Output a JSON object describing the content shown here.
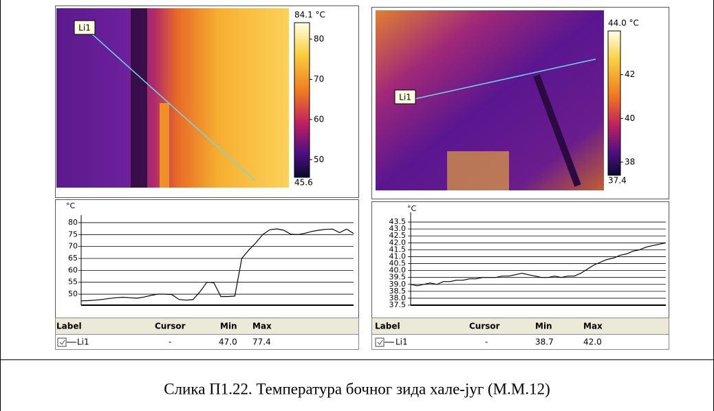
{
  "panels": [
    {
      "image": {
        "line_label": "Li1",
        "colorbar": {
          "ticks": [
            {
              "value": 84.1,
              "label": "84.1 °C"
            },
            80,
            70,
            60,
            50,
            45.6
          ]
        }
      },
      "profile": {
        "unit": "°C",
        "ylim": [
          45.4,
          82
        ],
        "yticks": [
          50,
          55,
          60,
          65,
          70,
          75,
          80
        ],
        "values": [
          47.2,
          47.3,
          47.5,
          47.8,
          48.2,
          48.5,
          48.7,
          48.5,
          48.3,
          48.8,
          49.5,
          50.0,
          50.0,
          49.8,
          47.8,
          47.5,
          47.7,
          51.0,
          55.0,
          54.8,
          49.0,
          49.0,
          49.2,
          65.0,
          68.5,
          71.5,
          75.0,
          77.0,
          77.4,
          76.8,
          75.2,
          75.0,
          75.5,
          76.3,
          76.8,
          77.2,
          77.3,
          75.8,
          77.3,
          75.5
        ]
      },
      "table": {
        "header": [
          "Label",
          "Cursor",
          "Min",
          "Max"
        ],
        "rows": [
          [
            "Li1",
            "-",
            "47.0",
            "77.4"
          ]
        ]
      }
    },
    {
      "image": {
        "line_label": "Li1",
        "colorbar": {
          "ticks": [
            {
              "value": 44,
              "label": "44.0 °C"
            },
            42,
            40,
            38,
            37.4
          ]
        }
      },
      "profile": {
        "unit": "°C",
        "ylim": [
          37.5,
          44
        ],
        "yticks": [
          {
            "value": 37.5,
            "label": "37.5"
          },
          {
            "value": 38,
            "label": "38.0"
          },
          38.5,
          {
            "value": 39,
            "label": "39.0"
          },
          39.5,
          {
            "value": 40,
            "label": "40.0"
          },
          40.5,
          {
            "value": 41,
            "label": "41.0"
          },
          41.5,
          {
            "value": 42,
            "label": "42.0"
          },
          42.5,
          {
            "value": 43,
            "label": "43.0"
          },
          43.5
        ],
        "values": [
          39.0,
          38.9,
          39.0,
          39.1,
          39.0,
          39.2,
          39.2,
          39.3,
          39.3,
          39.4,
          39.4,
          39.5,
          39.5,
          39.5,
          39.6,
          39.6,
          39.7,
          39.8,
          39.7,
          39.6,
          39.5,
          39.5,
          39.6,
          39.5,
          39.6,
          39.6,
          39.8,
          40.1,
          40.4,
          40.6,
          40.8,
          40.9,
          41.1,
          41.2,
          41.4,
          41.5,
          41.7,
          41.8,
          41.9,
          42.0
        ]
      },
      "table": {
        "header": [
          "Label",
          "Cursor",
          "Min",
          "Max"
        ],
        "rows": [
          [
            "Li1",
            "-",
            "38.7",
            "42.0"
          ]
        ]
      }
    }
  ],
  "caption": "Слика П1.22. Температура бочног зида хале-југ (М.М.12)"
}
